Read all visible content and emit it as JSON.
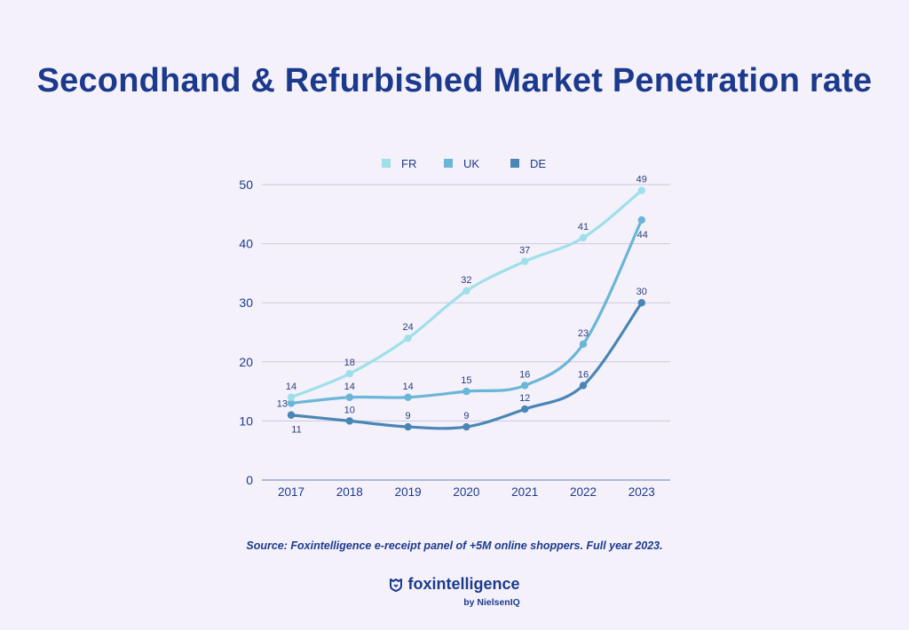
{
  "title": "Secondhand & Refurbished Market Penetration rate",
  "source": "Source: Foxintelligence e-receipt panel of +5M online shoppers. Full year 2023.",
  "brand": {
    "name": "foxintelligence",
    "sub": "by NielsenIQ",
    "icon": "shield-fox-icon"
  },
  "chart_data": {
    "type": "line",
    "title": "",
    "xlabel": "",
    "ylabel": "",
    "categories": [
      "2017",
      "2018",
      "2019",
      "2020",
      "2021",
      "2022",
      "2023"
    ],
    "ylim": [
      0,
      50
    ],
    "yticks": [
      0,
      10,
      20,
      30,
      40,
      50
    ],
    "grid": true,
    "legend_position": "top",
    "series": [
      {
        "name": "FR",
        "color": "#9ee0ea",
        "values": [
          14,
          18,
          24,
          32,
          37,
          41,
          49
        ]
      },
      {
        "name": "UK",
        "color": "#6ab6d6",
        "values": [
          13,
          14,
          14,
          15,
          16,
          23,
          44
        ]
      },
      {
        "name": "DE",
        "color": "#4a86b4",
        "values": [
          11,
          10,
          9,
          9,
          12,
          16,
          30
        ]
      }
    ]
  }
}
